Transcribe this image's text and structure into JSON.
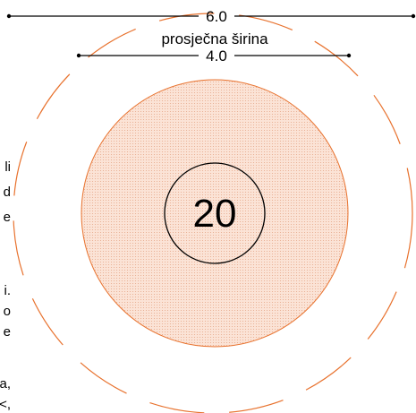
{
  "dimensions": {
    "outer_value": "6.0",
    "caption": "prosječna širina",
    "inner_value": "4.0"
  },
  "center_number": "20",
  "left_text_fragments": [
    "li",
    "d",
    "e",
    "i.",
    "o",
    "e",
    "a,",
    "<,"
  ],
  "colors": {
    "orange": "#e8722e",
    "fill": "#fbe3d6",
    "dots": "#e7a787",
    "black": "#000000"
  }
}
